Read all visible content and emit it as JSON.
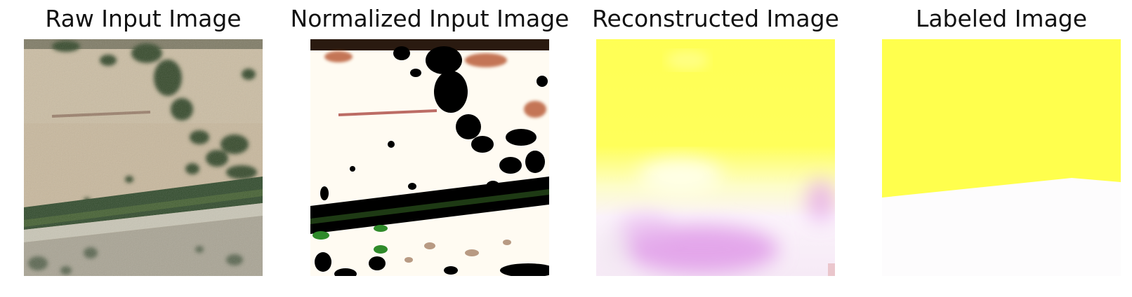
{
  "panels": [
    {
      "title": "Raw Input Image"
    },
    {
      "title": "Normalized Input Image"
    },
    {
      "title": "Reconstructed Image"
    },
    {
      "title": "Labeled Image"
    }
  ],
  "colors": {
    "background": "#ffffff",
    "label_yellow": "#ffff4d",
    "label_white": "#fdfcfd",
    "recon_magenta": "#d88be6",
    "raw_soil": "#c7b79b",
    "raw_vegetation": "#2f4a26"
  }
}
